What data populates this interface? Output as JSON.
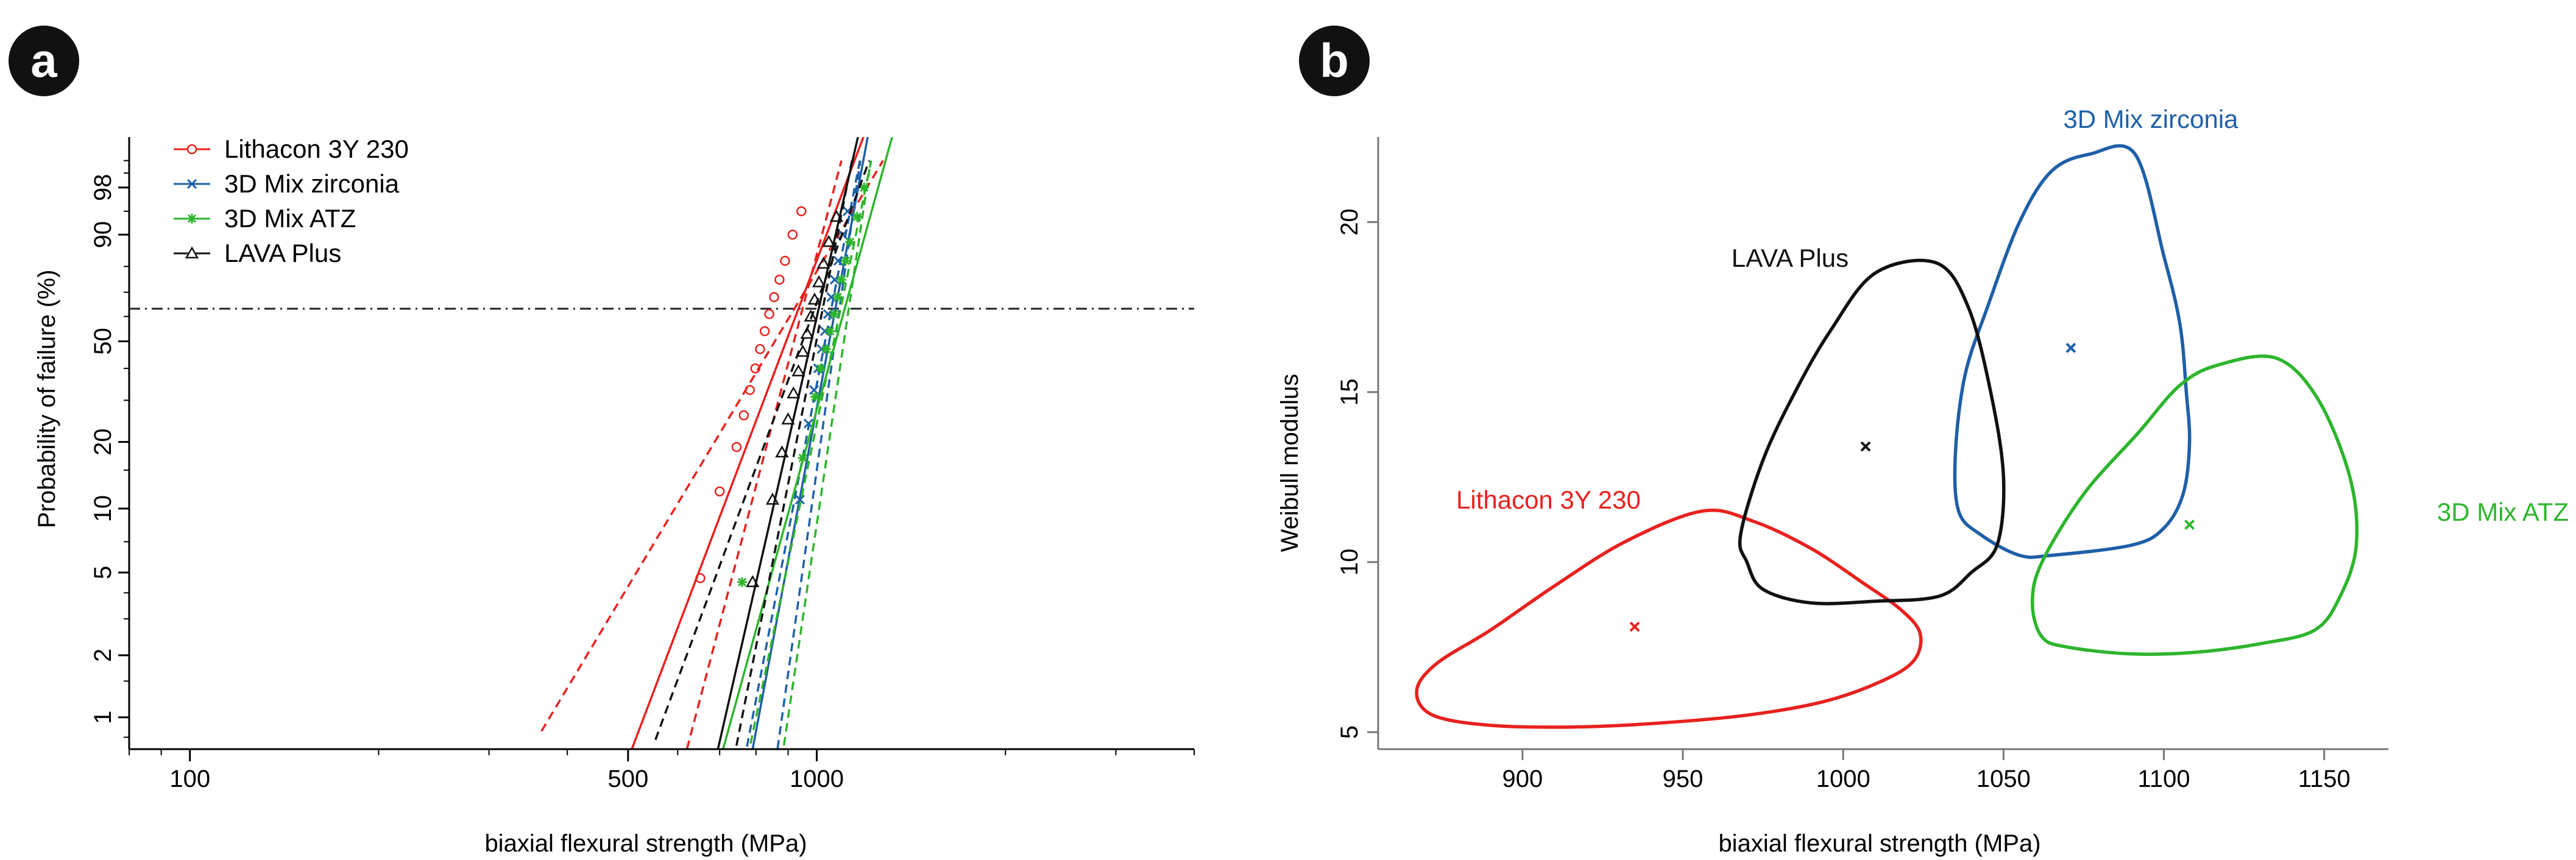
{
  "panels": {
    "a": {
      "badge": "a"
    },
    "b": {
      "badge": "b"
    }
  },
  "chart_data": [
    {
      "type": "line",
      "panel": "a",
      "xlabel": "biaxial flexural strength (MPa)",
      "ylabel": "Probability of failure (%)",
      "xscale": "log",
      "yscale": "weibull",
      "xlim": [
        80,
        4000
      ],
      "ylim": [
        0.7,
        99.9
      ],
      "x_ticks": [
        100,
        500,
        1000
      ],
      "y_ticks": [
        1,
        2,
        5,
        10,
        20,
        50,
        90,
        98
      ],
      "reference_line_y": 63.2,
      "legend_position": "top-left",
      "series": [
        {
          "name": "Lithacon 3Y 230",
          "color": "#e8211e",
          "marker": "circle",
          "characteristic_strength": 935,
          "weibull_modulus": 8.1,
          "ci_low_x_at_1pct": 375,
          "ci_high_x_at_1pct": 640,
          "points": [
            [
              652,
              4.7
            ],
            [
              700,
              12
            ],
            [
              745,
              19
            ],
            [
              765,
              26
            ],
            [
              782,
              33
            ],
            [
              798,
              40
            ],
            [
              812,
              47
            ],
            [
              826,
              54
            ],
            [
              840,
              61
            ],
            [
              855,
              68
            ],
            [
              872,
              75
            ],
            [
              890,
              82
            ],
            [
              915,
              90
            ],
            [
              945,
              95
            ]
          ]
        },
        {
          "name": "3D Mix zirconia",
          "color": "#1f5fa8",
          "marker": "x",
          "characteristic_strength": 1071,
          "weibull_modulus": 16.3,
          "ci_low_x_at_1pct": 790,
          "ci_high_x_at_1pct": 880,
          "points": [
            [
              940,
              11
            ],
            [
              970,
              24
            ],
            [
              990,
              33
            ],
            [
              1005,
              40
            ],
            [
              1018,
              47
            ],
            [
              1030,
              54
            ],
            [
              1042,
              61
            ],
            [
              1055,
              68
            ],
            [
              1068,
              75
            ],
            [
              1082,
              82
            ],
            [
              1100,
              90
            ],
            [
              1120,
              95
            ]
          ]
        },
        {
          "name": "3D Mix ATZ",
          "color": "#2db52d",
          "marker": "asterisk",
          "characteristic_strength": 1108,
          "weibull_modulus": 11.1,
          "ci_low_x_at_1pct": 800,
          "ci_high_x_at_1pct": 900,
          "points": [
            [
              760,
              4.5
            ],
            [
              950,
              17
            ],
            [
              995,
              31
            ],
            [
              1015,
              40
            ],
            [
              1035,
              47
            ],
            [
              1050,
              54
            ],
            [
              1065,
              61
            ],
            [
              1080,
              68
            ],
            [
              1095,
              75
            ],
            [
              1112,
              82
            ],
            [
              1130,
              88
            ],
            [
              1160,
              94
            ],
            [
              1190,
              98
            ]
          ]
        },
        {
          "name": "LAVA Plus",
          "color": "#111111",
          "marker": "triangle",
          "characteristic_strength": 1007,
          "weibull_modulus": 13.4,
          "ci_low_x_at_1pct": 570,
          "ci_high_x_at_1pct": 760,
          "points": [
            [
              790,
              4.5
            ],
            [
              850,
              11
            ],
            [
              880,
              18
            ],
            [
              900,
              25
            ],
            [
              918,
              32
            ],
            [
              935,
              39
            ],
            [
              950,
              46
            ],
            [
              965,
              53
            ],
            [
              978,
              60
            ],
            [
              992,
              67
            ],
            [
              1008,
              74
            ],
            [
              1025,
              81
            ],
            [
              1045,
              88
            ],
            [
              1075,
              94
            ]
          ]
        }
      ]
    },
    {
      "type": "scatter",
      "panel": "b",
      "xlabel": "biaxial flexural strength (MPa)",
      "ylabel": "Weibull modulus",
      "xlim": [
        855,
        1170
      ],
      "ylim": [
        4.5,
        22.5
      ],
      "x_ticks": [
        900,
        950,
        1000,
        1050,
        1100,
        1150
      ],
      "y_ticks": [
        5,
        10,
        15,
        20
      ],
      "series": [
        {
          "name": "Lithacon 3Y 230",
          "color": "#e8211e",
          "center": [
            935,
            8.1
          ],
          "contour": [
            [
              956,
              11.5
            ],
            [
              972,
              11.2
            ],
            [
              990,
              10.4
            ],
            [
              1006,
              9.4
            ],
            [
              1018,
              8.6
            ],
            [
              1024,
              7.9
            ],
            [
              1022,
              7.1
            ],
            [
              1012,
              6.5
            ],
            [
              994,
              5.9
            ],
            [
              970,
              5.5
            ],
            [
              940,
              5.25
            ],
            [
              915,
              5.15
            ],
            [
              890,
              5.2
            ],
            [
              872,
              5.5
            ],
            [
              867,
              6.2
            ],
            [
              873,
              7.0
            ],
            [
              890,
              8.0
            ],
            [
              910,
              9.3
            ],
            [
              932,
              10.6
            ]
          ]
        },
        {
          "name": "3D Mix zirconia",
          "color": "#1f5fa8",
          "center": [
            1071,
            16.3
          ],
          "contour": [
            [
              1077,
              22
            ],
            [
              1091,
              22
            ],
            [
              1100,
              19
            ],
            [
              1105,
              17
            ],
            [
              1107,
              15
            ],
            [
              1108,
              13.5
            ],
            [
              1106,
              12
            ],
            [
              1100,
              11
            ],
            [
              1090,
              10.5
            ],
            [
              1065,
              10.2
            ],
            [
              1055,
              10.2
            ],
            [
              1043,
              10.8
            ],
            [
              1036,
              11.5
            ],
            [
              1035,
              13.2
            ],
            [
              1038,
              15.5
            ],
            [
              1045,
              17.5
            ],
            [
              1055,
              20
            ],
            [
              1065,
              21.5
            ]
          ]
        },
        {
          "name": "3D Mix ATZ",
          "color": "#2db52d",
          "center": [
            1108,
            11.1
          ],
          "contour": [
            [
              1117,
              15.8
            ],
            [
              1135,
              16.0
            ],
            [
              1148,
              14.8
            ],
            [
              1158,
              12.5
            ],
            [
              1160,
              10.5
            ],
            [
              1155,
              9.0
            ],
            [
              1147,
              8.0
            ],
            [
              1130,
              7.6
            ],
            [
              1110,
              7.35
            ],
            [
              1090,
              7.3
            ],
            [
              1070,
              7.5
            ],
            [
              1062,
              7.8
            ],
            [
              1059,
              8.8
            ],
            [
              1062,
              10.0
            ],
            [
              1075,
              12.0
            ],
            [
              1092,
              13.8
            ],
            [
              1105,
              15.2
            ]
          ]
        },
        {
          "name": "LAVA Plus",
          "color": "#111111",
          "center": [
            1007,
            13.4
          ],
          "contour": [
            [
              1010,
              18.5
            ],
            [
              1029,
              18.8
            ],
            [
              1039,
              17.5
            ],
            [
              1046,
              15.0
            ],
            [
              1050,
              12.5
            ],
            [
              1048,
              10.5
            ],
            [
              1040,
              9.7
            ],
            [
              1030,
              9.0
            ],
            [
              1010,
              8.85
            ],
            [
              990,
              8.8
            ],
            [
              975,
              9.2
            ],
            [
              970,
              10.0
            ],
            [
              968,
              10.8
            ],
            [
              975,
              13.0
            ],
            [
              985,
              15.0
            ],
            [
              996,
              16.8
            ]
          ]
        }
      ]
    }
  ]
}
